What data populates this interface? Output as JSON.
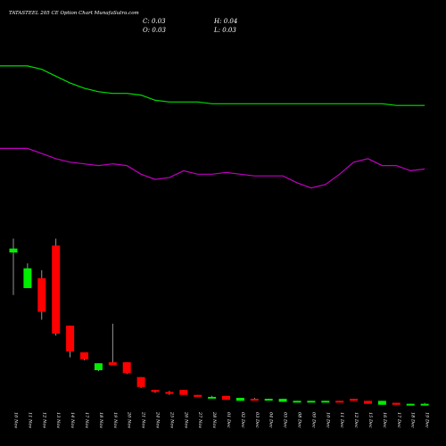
{
  "header": {
    "title": "TATASTEEL 205 CE Option  Chart MunafaSutra.com",
    "close_label": "C: 0.03",
    "high_label": "H: 0.04",
    "open_label": "O: 0.03",
    "low_label": "L: 0.03"
  },
  "colors": {
    "background": "#000000",
    "up": "#00ee00",
    "down": "#ff0000",
    "ma_short": "#00dd00",
    "ma_long": "#c000c0",
    "text": "#ffffff"
  },
  "chart_data": {
    "type": "candlestick",
    "title": "TATASTEEL 205 CE Option  Chart MunafaSutra.com",
    "dates": [
      "10 Nov",
      "11 Nov",
      "12 Nov",
      "13 Nov",
      "14 Nov",
      "17 Nov",
      "18 Nov",
      "19 Nov",
      "20 Nov",
      "21 Nov",
      "24 Nov",
      "25 Nov",
      "26 Nov",
      "27 Nov",
      "28 Nov",
      "01 Dec",
      "02 Dec",
      "03 Dec",
      "04 Dec",
      "05 Dec",
      "08 Dec",
      "09 Dec",
      "10 Dec",
      "11 Dec",
      "12 Dec",
      "15 Dec",
      "16 Dec",
      "17 Dec",
      "18 Dec",
      "19 Dec"
    ],
    "candles": [
      {
        "open": 1.56,
        "high": 1.7,
        "low": 1.13,
        "close": 1.6
      },
      {
        "open": 1.2,
        "high": 1.45,
        "low": 1.2,
        "close": 1.4
      },
      {
        "open": 1.3,
        "high": 1.38,
        "low": 0.88,
        "close": 0.96
      },
      {
        "open": 1.63,
        "high": 1.7,
        "low": 0.72,
        "close": 0.74
      },
      {
        "open": 0.82,
        "high": 0.82,
        "low": 0.5,
        "close": 0.56
      },
      {
        "open": 0.55,
        "high": 0.55,
        "low": 0.47,
        "close": 0.48
      },
      {
        "open": 0.37,
        "high": 0.44,
        "low": 0.36,
        "close": 0.44
      },
      {
        "open": 0.45,
        "high": 0.84,
        "low": 0.43,
        "close": 0.42
      },
      {
        "open": 0.45,
        "high": 0.45,
        "low": 0.33,
        "close": 0.34
      },
      {
        "open": 0.3,
        "high": 0.3,
        "low": 0.19,
        "close": 0.2
      },
      {
        "open": 0.17,
        "high": 0.17,
        "low": 0.14,
        "close": 0.15
      },
      {
        "open": 0.15,
        "high": 0.16,
        "low": 0.12,
        "close": 0.13
      },
      {
        "open": 0.17,
        "high": 0.17,
        "low": 0.12,
        "close": 0.12
      },
      {
        "open": 0.12,
        "high": 0.12,
        "low": 0.1,
        "close": 0.1
      },
      {
        "open": 0.1,
        "high": 0.11,
        "low": 0.09,
        "close": 0.1
      },
      {
        "open": 0.11,
        "high": 0.11,
        "low": 0.07,
        "close": 0.07
      },
      {
        "open": 0.06,
        "high": 0.09,
        "low": 0.06,
        "close": 0.09
      },
      {
        "open": 0.08,
        "high": 0.09,
        "low": 0.07,
        "close": 0.07
      },
      {
        "open": 0.07,
        "high": 0.08,
        "low": 0.07,
        "close": 0.08
      },
      {
        "open": 0.05,
        "high": 0.08,
        "low": 0.05,
        "close": 0.08
      },
      {
        "open": 0.05,
        "high": 0.06,
        "low": 0.05,
        "close": 0.06
      },
      {
        "open": 0.05,
        "high": 0.06,
        "low": 0.05,
        "close": 0.06
      },
      {
        "open": 0.05,
        "high": 0.06,
        "low": 0.05,
        "close": 0.06
      },
      {
        "open": 0.06,
        "high": 0.06,
        "low": 0.05,
        "close": 0.05
      },
      {
        "open": 0.08,
        "high": 0.08,
        "low": 0.06,
        "close": 0.06
      },
      {
        "open": 0.06,
        "high": 0.06,
        "low": 0.03,
        "close": 0.03
      },
      {
        "open": 0.02,
        "high": 0.06,
        "low": 0.02,
        "close": 0.06
      },
      {
        "open": 0.04,
        "high": 0.04,
        "low": 0.02,
        "close": 0.02
      },
      {
        "open": 0.02,
        "high": 0.03,
        "low": 0.02,
        "close": 0.03
      },
      {
        "open": 0.03,
        "high": 0.04,
        "low": 0.03,
        "close": 0.03
      }
    ],
    "series": [
      {
        "values": [
          1.08,
          1.08,
          1.06,
          1.02,
          0.98,
          0.95,
          0.93,
          0.92,
          0.92,
          0.91,
          0.88,
          0.87,
          0.87,
          0.87,
          0.86,
          0.86,
          0.86,
          0.86,
          0.86,
          0.86,
          0.86,
          0.86,
          0.86,
          0.86,
          0.86,
          0.86,
          0.86,
          0.85,
          0.85,
          0.85
        ]
      },
      {
        "values": [
          0.6,
          0.6,
          0.57,
          0.54,
          0.52,
          0.51,
          0.5,
          0.51,
          0.5,
          0.45,
          0.42,
          0.43,
          0.47,
          0.45,
          0.45,
          0.46,
          0.45,
          0.44,
          0.44,
          0.44,
          0.4,
          0.37,
          0.39,
          0.45,
          0.52,
          0.54,
          0.5,
          0.5,
          0.47,
          0.48
        ]
      }
    ],
    "ylim": [
      0,
      1.75
    ]
  }
}
